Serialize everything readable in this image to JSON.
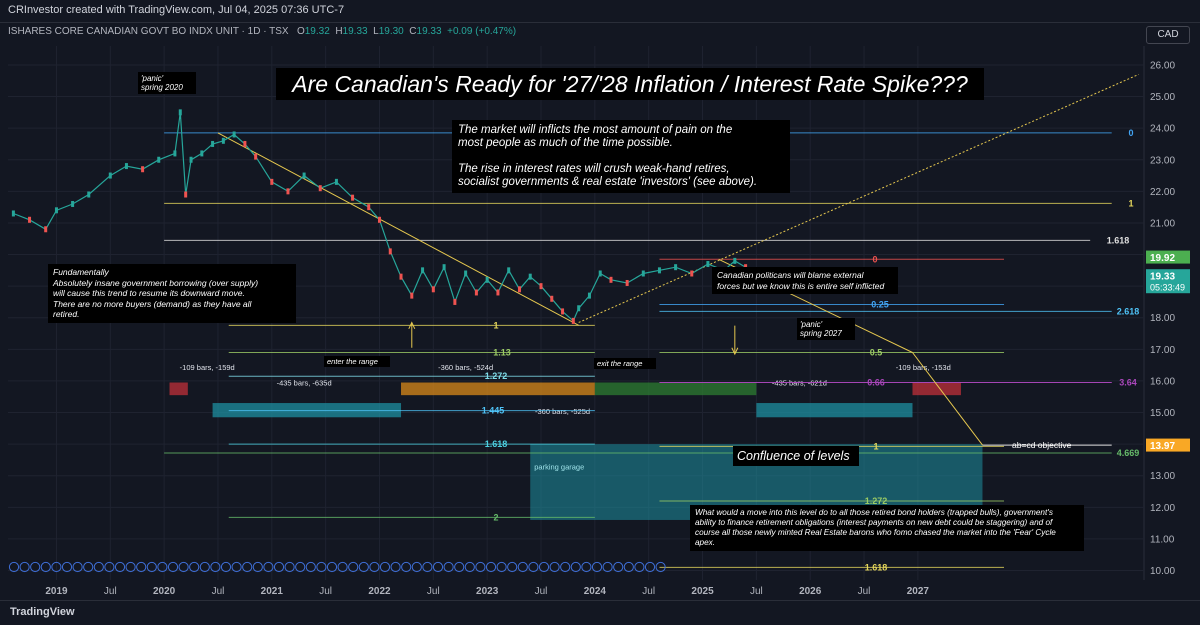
{
  "header": {
    "credit": "CRInvestor created with TradingView.com, Jul 04, 2025 07:36 UTC-7",
    "symbol": "ISHARES CORE CANADIAN GOVT BO INDX UNIT · 1D · TSX",
    "ohlc": {
      "o": "19.32",
      "h": "19.33",
      "l": "19.30",
      "c": "19.33",
      "chg": "+0.09 (+0.47%)"
    },
    "currency": "CAD"
  },
  "footer": {
    "brand": "TradingView"
  },
  "annotations": {
    "title": "Are Canadian's Ready for '27/'28 Inflation / Interest Rate Spike???",
    "market_note": "The market will inflicts the most amount of pain on the\nmost people as much of the time possible.\n\nThe rise in interest rates will crush weak-hand retires,\nsocialist governments & real estate 'investors' (see above).",
    "fundamentally": "Fundamentally\nAbsolutely insane government borrowing (over supply)\nwill cause this trend to resume its downward move.\nThere are no more buyers (demand) as they have all\nretired.",
    "politicians": "Canadian politicans will blame external\nforces but we know this is entire self inflicted",
    "panic_2020": "'panic'\nspring 2020",
    "panic_2027": "'panic'\nspring 2027",
    "confluence": "Confluence of levels",
    "bottom_note": "What would a move into this level do to all those retired bond holders (trapped bulls), government's\nability to finance retirement obligations (interest payments on new debt could be staggering) and of\ncourse all those newly minted Real Estate barons who fomo chased the market into the 'Fear' Cycle\napex.",
    "enter_range": "enter the range",
    "exit_range": "exit the range",
    "parking_garage": "parking garage",
    "abcd": "ab=cd objective"
  },
  "chart_data": {
    "type": "line",
    "title": "ISHARES CORE CANADIAN GOVT BO INDX UNIT · 1D · TSX",
    "x_ticks": [
      "2019",
      "Jul",
      "2020",
      "Jul",
      "2021",
      "Jul",
      "2022",
      "Jul",
      "2023",
      "Jul",
      "2024",
      "Jul",
      "2025",
      "Jul",
      "2026",
      "Jul",
      "2027"
    ],
    "x_tick_values": [
      2019.0,
      2019.5,
      2020.0,
      2020.5,
      2021.0,
      2021.5,
      2022.0,
      2022.5,
      2023.0,
      2023.5,
      2024.0,
      2024.5,
      2025.0,
      2025.5,
      2026.0,
      2026.5,
      2027.0
    ],
    "xlim": [
      2018.55,
      2029.1
    ],
    "y_ticks": [
      "26.00",
      "25.00",
      "24.00",
      "23.00",
      "22.00",
      "21.00",
      "20.00",
      "19.00",
      "18.00",
      "17.00",
      "16.00",
      "15.00",
      "14.00",
      "13.00",
      "12.00",
      "11.00",
      "10.00"
    ],
    "ylim": [
      9.7,
      26.6
    ],
    "price_series": {
      "name": "Price",
      "x": [
        2018.6,
        2018.75,
        2018.9,
        2019.0,
        2019.15,
        2019.3,
        2019.5,
        2019.65,
        2019.8,
        2019.95,
        2020.1,
        2020.15,
        2020.2,
        2020.25,
        2020.35,
        2020.45,
        2020.55,
        2020.65,
        2020.75,
        2020.85,
        2021.0,
        2021.15,
        2021.3,
        2021.45,
        2021.6,
        2021.75,
        2021.9,
        2022.0,
        2022.1,
        2022.2,
        2022.3,
        2022.4,
        2022.5,
        2022.6,
        2022.7,
        2022.8,
        2022.9,
        2023.0,
        2023.1,
        2023.2,
        2023.3,
        2023.4,
        2023.5,
        2023.6,
        2023.7,
        2023.8,
        2023.85,
        2023.95,
        2024.05,
        2024.15,
        2024.3,
        2024.45,
        2024.6,
        2024.75,
        2024.9,
        2025.05,
        2025.2,
        2025.3,
        2025.4,
        2025.5
      ],
      "y": [
        21.3,
        21.1,
        20.8,
        21.4,
        21.6,
        21.9,
        22.5,
        22.8,
        22.7,
        23.0,
        23.2,
        24.5,
        21.9,
        23.0,
        23.2,
        23.5,
        23.6,
        23.8,
        23.5,
        23.1,
        22.3,
        22.0,
        22.5,
        22.1,
        22.3,
        21.8,
        21.5,
        21.1,
        20.1,
        19.3,
        18.7,
        19.5,
        18.9,
        19.6,
        18.5,
        19.4,
        18.8,
        19.2,
        18.8,
        19.5,
        18.9,
        19.3,
        19.0,
        18.6,
        18.2,
        17.9,
        18.3,
        18.7,
        19.4,
        19.2,
        19.1,
        19.4,
        19.5,
        19.6,
        19.4,
        19.7,
        19.5,
        19.8,
        19.6,
        19.33
      ]
    },
    "fib_levels": [
      {
        "value": 23.85,
        "label": "0",
        "color": "#42a5f5"
      },
      {
        "value": 21.62,
        "label": "1",
        "color": "#e6d75c"
      },
      {
        "value": 20.45,
        "label": "1.618",
        "color": "#e0e0e0"
      },
      {
        "value": 19.85,
        "label": "0",
        "color": "#ef5350"
      },
      {
        "value": 18.42,
        "label": "0.25",
        "color": "#42a5f5"
      },
      {
        "value": 18.2,
        "label": "2.618",
        "color": "#4fc3f7"
      },
      {
        "value": 17.76,
        "label": "1",
        "color": "#e6d75c"
      },
      {
        "value": 16.9,
        "label": "1.13",
        "color": "#9ccc65"
      },
      {
        "value": 16.9,
        "label": "0.5",
        "color": "#9ccc65"
      },
      {
        "value": 16.15,
        "label": "1.272",
        "color": "#80deea"
      },
      {
        "value": 15.95,
        "label": "0.66",
        "color": "#ab47bc"
      },
      {
        "value": 15.95,
        "label": "3.64",
        "color": "#ab47bc"
      },
      {
        "value": 15.06,
        "label": "1.445",
        "color": "#4fc3f7"
      },
      {
        "value": 14.0,
        "label": "1.618",
        "color": "#4dd0e1"
      },
      {
        "value": 13.93,
        "label": "1",
        "color": "#e6d75c"
      },
      {
        "value": 13.72,
        "label": "4.669",
        "color": "#66bb6a"
      },
      {
        "value": 12.2,
        "label": "1.272",
        "color": "#9ccc65"
      },
      {
        "value": 11.68,
        "label": "2",
        "color": "#66bb6a"
      },
      {
        "value": 10.1,
        "label": "1.618",
        "color": "#e6d75c"
      }
    ],
    "price_labels": [
      {
        "value": 19.92,
        "label": "19.92",
        "color": "#4caf50"
      },
      {
        "value": 19.33,
        "label": "19.33",
        "sub": "05:33:49",
        "color": "#26a69a"
      },
      {
        "value": 13.97,
        "label": "13.97",
        "color": "#f9a825"
      }
    ],
    "ranges": [
      {
        "label": "-109 bars, -159d"
      },
      {
        "label": "-435 bars, -635d"
      },
      {
        "label": "-360 bars, -524d"
      },
      {
        "label": "-360 bars, -525d"
      },
      {
        "label": "-435 bars, -621d"
      },
      {
        "label": "-109 bars, -153d"
      }
    ],
    "colors": {
      "up": "#26a69a",
      "down": "#ef5350",
      "trend": "#e6c84f",
      "zone": "#1e8fa0",
      "bg": "#131722",
      "grid": "#1f2330",
      "text": "#b2b5be"
    }
  }
}
